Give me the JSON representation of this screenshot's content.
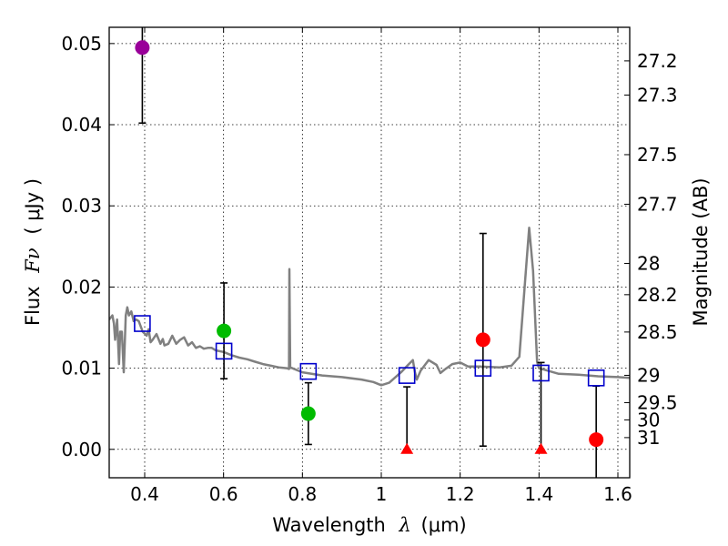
{
  "chart_data": {
    "type": "scatter",
    "title": "",
    "xlabel_text": "Wavelength",
    "xlabel_symbol": "λ",
    "xlabel_unit": "(μm)",
    "ylabel_text": "Flux",
    "ylabel_symbol": "Fν",
    "ylabel_unit": "( μJy )",
    "y2label": "Magnitude (AB)",
    "xlim": [
      0.31,
      1.63
    ],
    "ylim": [
      -0.0035,
      0.052
    ],
    "grid": true,
    "x_ticks": [
      0.4,
      0.6,
      0.8,
      1.0,
      1.2,
      1.4,
      1.6
    ],
    "x_tick_labels": [
      "0.4",
      "0.6",
      "0.8",
      "1",
      "1.2",
      "1.4",
      "1.6"
    ],
    "y_ticks": [
      0.0,
      0.01,
      0.02,
      0.03,
      0.04,
      0.05
    ],
    "y_tick_labels": [
      "0.00",
      "0.01",
      "0.02",
      "0.03",
      "0.04",
      "0.05"
    ],
    "mag_ticks": [
      "27.2",
      "27.3",
      "27.5",
      "27.7",
      "28",
      "28.2",
      "28.5",
      "29",
      "29.5",
      "30",
      "31"
    ],
    "colors": {
      "model": "#808080",
      "photometry_blue": "#800080",
      "photometry_green": "#00bb00",
      "photometry_red": "#ff0000",
      "model_band": "#0000cc",
      "errorbar": "#000000"
    },
    "model_spectrum": [
      [
        0.31,
        0.016
      ],
      [
        0.318,
        0.0165
      ],
      [
        0.322,
        0.0155
      ],
      [
        0.325,
        0.0135
      ],
      [
        0.33,
        0.016
      ],
      [
        0.335,
        0.0105
      ],
      [
        0.338,
        0.0145
      ],
      [
        0.342,
        0.0145
      ],
      [
        0.347,
        0.0095
      ],
      [
        0.352,
        0.0165
      ],
      [
        0.356,
        0.0175
      ],
      [
        0.36,
        0.0165
      ],
      [
        0.366,
        0.017
      ],
      [
        0.372,
        0.0158
      ],
      [
        0.378,
        0.016
      ],
      [
        0.385,
        0.0158
      ],
      [
        0.395,
        0.0145
      ],
      [
        0.405,
        0.014
      ],
      [
        0.41,
        0.0148
      ],
      [
        0.415,
        0.0132
      ],
      [
        0.42,
        0.0135
      ],
      [
        0.43,
        0.0142
      ],
      [
        0.44,
        0.013
      ],
      [
        0.446,
        0.0136
      ],
      [
        0.45,
        0.0128
      ],
      [
        0.46,
        0.013
      ],
      [
        0.47,
        0.014
      ],
      [
        0.48,
        0.013
      ],
      [
        0.49,
        0.0135
      ],
      [
        0.5,
        0.0138
      ],
      [
        0.51,
        0.0128
      ],
      [
        0.52,
        0.0132
      ],
      [
        0.53,
        0.0125
      ],
      [
        0.54,
        0.0127
      ],
      [
        0.55,
        0.0124
      ],
      [
        0.56,
        0.0125
      ],
      [
        0.57,
        0.0125
      ],
      [
        0.58,
        0.0122
      ],
      [
        0.6,
        0.012
      ],
      [
        0.62,
        0.0116
      ],
      [
        0.64,
        0.0113
      ],
      [
        0.66,
        0.0111
      ],
      [
        0.68,
        0.0108
      ],
      [
        0.7,
        0.0105
      ],
      [
        0.72,
        0.0103
      ],
      [
        0.74,
        0.0101
      ],
      [
        0.76,
        0.01
      ],
      [
        0.766,
        0.0099
      ],
      [
        0.767,
        0.0222
      ],
      [
        0.769,
        0.0101
      ],
      [
        0.8,
        0.0095
      ],
      [
        0.85,
        0.0091
      ],
      [
        0.9,
        0.0089
      ],
      [
        0.95,
        0.0086
      ],
      [
        0.98,
        0.0083
      ],
      [
        1.0,
        0.0079
      ],
      [
        1.02,
        0.0082
      ],
      [
        1.05,
        0.0095
      ],
      [
        1.07,
        0.0105
      ],
      [
        1.08,
        0.011
      ],
      [
        1.085,
        0.0096
      ],
      [
        1.09,
        0.0086
      ],
      [
        1.1,
        0.0097
      ],
      [
        1.12,
        0.011
      ],
      [
        1.14,
        0.0104
      ],
      [
        1.15,
        0.0094
      ],
      [
        1.16,
        0.0098
      ],
      [
        1.18,
        0.0105
      ],
      [
        1.2,
        0.0107
      ],
      [
        1.22,
        0.0102
      ],
      [
        1.25,
        0.0102
      ],
      [
        1.3,
        0.0101
      ],
      [
        1.33,
        0.0103
      ],
      [
        1.35,
        0.0114
      ],
      [
        1.365,
        0.021
      ],
      [
        1.375,
        0.0273
      ],
      [
        1.385,
        0.022
      ],
      [
        1.395,
        0.0108
      ],
      [
        1.4,
        0.01
      ],
      [
        1.45,
        0.0093
      ],
      [
        1.5,
        0.0092
      ],
      [
        1.55,
        0.009
      ],
      [
        1.6,
        0.0089
      ],
      [
        1.63,
        0.0088
      ]
    ],
    "photometry": [
      {
        "band": 1,
        "x": 0.394,
        "y": 0.0495,
        "err": 0.0093,
        "color": "#990099",
        "marker": "circle"
      },
      {
        "band": 2,
        "x": 0.601,
        "y": 0.0146,
        "err": 0.0059,
        "color": "#00bb00",
        "marker": "circle"
      },
      {
        "band": 3,
        "x": 0.815,
        "y": 0.0044,
        "err": 0.0038,
        "color": "#00bb00",
        "marker": "circle"
      },
      {
        "band": 4,
        "x": 1.065,
        "y": 0.0,
        "err_up": 0.0077,
        "err_down": 0.0,
        "color": "#ff0000",
        "marker": "triangle"
      },
      {
        "band": 5,
        "x": 1.258,
        "y": 0.0135,
        "err": 0.0131,
        "color": "#ff0000",
        "marker": "circle"
      },
      {
        "band": 6,
        "x": 1.405,
        "y": 0.0,
        "err_up": 0.0107,
        "err_down": 0.0,
        "color": "#ff0000",
        "marker": "triangle"
      },
      {
        "band": 7,
        "x": 1.545,
        "y": 0.0012,
        "err": 0.0066,
        "err_down_clipped": true,
        "color": "#ff0000",
        "marker": "circle"
      }
    ],
    "model_bands": [
      {
        "x": 0.394,
        "y": 0.0155
      },
      {
        "x": 0.601,
        "y": 0.0121
      },
      {
        "x": 0.815,
        "y": 0.0096
      },
      {
        "x": 1.065,
        "y": 0.0091
      },
      {
        "x": 1.258,
        "y": 0.01
      },
      {
        "x": 1.405,
        "y": 0.0094
      },
      {
        "x": 1.545,
        "y": 0.0088
      }
    ]
  }
}
